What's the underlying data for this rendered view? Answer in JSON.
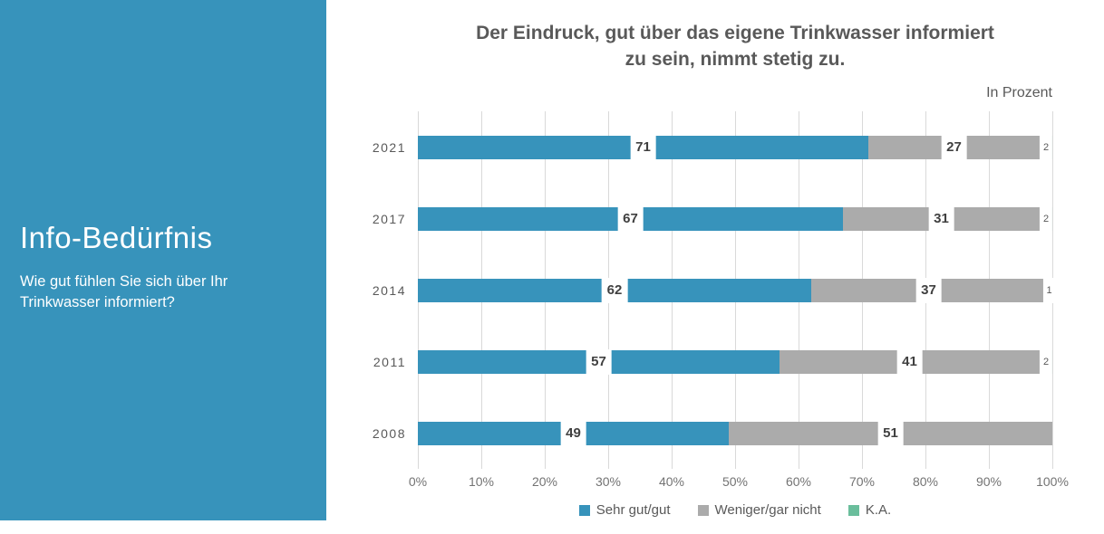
{
  "sidebar": {
    "title": "Info-Bedürfnis",
    "subtitle": "Wie gut fühlen Sie sich über Ihr Trinkwasser informiert?",
    "background": "#3793BB"
  },
  "header": {
    "title_lines": {
      "0": "Der Eindruck, gut über das eigene Trinkwasser informiert",
      "1": "zu sein, nimmt stetig zu."
    },
    "unit_note": "In Prozent"
  },
  "chart_data": {
    "type": "bar",
    "orientation": "horizontal",
    "stacked": true,
    "unit": "percent",
    "title": "Der Eindruck, gut über das eigene Trinkwasser informiert zu sein, nimmt stetig zu.",
    "categories": [
      "2021",
      "2017",
      "2014",
      "2011",
      "2008"
    ],
    "series": [
      {
        "name": "Sehr gut/gut",
        "color": "#3793BB",
        "values": [
          71,
          67,
          62,
          57,
          49
        ]
      },
      {
        "name": "Weniger/gar nicht",
        "color": "#ABABAB",
        "values": [
          27,
          31,
          37,
          41,
          51
        ]
      },
      {
        "name": "K.A.",
        "color": "#6ABE9C",
        "values": [
          2,
          2,
          1,
          2,
          0
        ]
      }
    ],
    "x_ticks": [
      "0%",
      "10%",
      "20%",
      "30%",
      "40%",
      "50%",
      "60%",
      "70%",
      "80%",
      "90%",
      "100%"
    ],
    "xlim": [
      0,
      100
    ],
    "grid": "vertical",
    "legend_position": "bottom",
    "gridline_color": "#D9D9D9"
  }
}
